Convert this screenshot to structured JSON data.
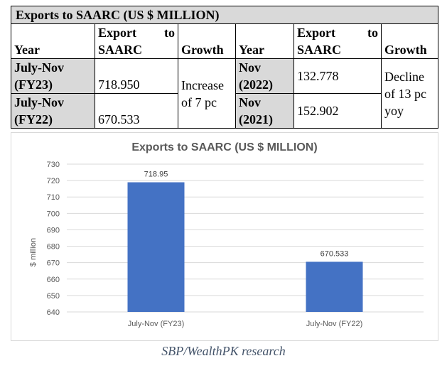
{
  "table": {
    "title": "Exports to SAARC (US $ MILLION)",
    "left": {
      "header_year": "Year",
      "header_export": "Export to SAARC",
      "header_growth": "Growth",
      "rows": [
        {
          "year": "July-Nov (FY23)",
          "export": "718.950"
        },
        {
          "year": "July-Nov (FY22)",
          "export": "670.533"
        }
      ],
      "growth": "Increase of 7 pc"
    },
    "right": {
      "header_year": "Year",
      "header_export": "Export to SAARC",
      "header_growth": "Growth",
      "rows": [
        {
          "year": "Nov (2022)",
          "export": "132.778"
        },
        {
          "year": "Nov (2021)",
          "export": "152.902"
        }
      ],
      "growth": "Decline of 13 pc yoy"
    }
  },
  "chart_data": {
    "type": "bar",
    "title": "Exports to SAARC (US $ MILLION)",
    "categories": [
      "July-Nov (FY23)",
      "July-Nov (FY22)"
    ],
    "values": [
      718.95,
      670.533
    ],
    "data_labels": [
      "718.95",
      "670.533"
    ],
    "xlabel": "",
    "ylabel": "$ million",
    "ylim": [
      640,
      730
    ],
    "yticks": [
      640,
      650,
      660,
      670,
      680,
      690,
      700,
      710,
      720,
      730
    ],
    "grid": true,
    "bar_color": "#4472c4",
    "gridline_color": "#d9d9d9"
  },
  "source": "SBP/WealthPK research"
}
